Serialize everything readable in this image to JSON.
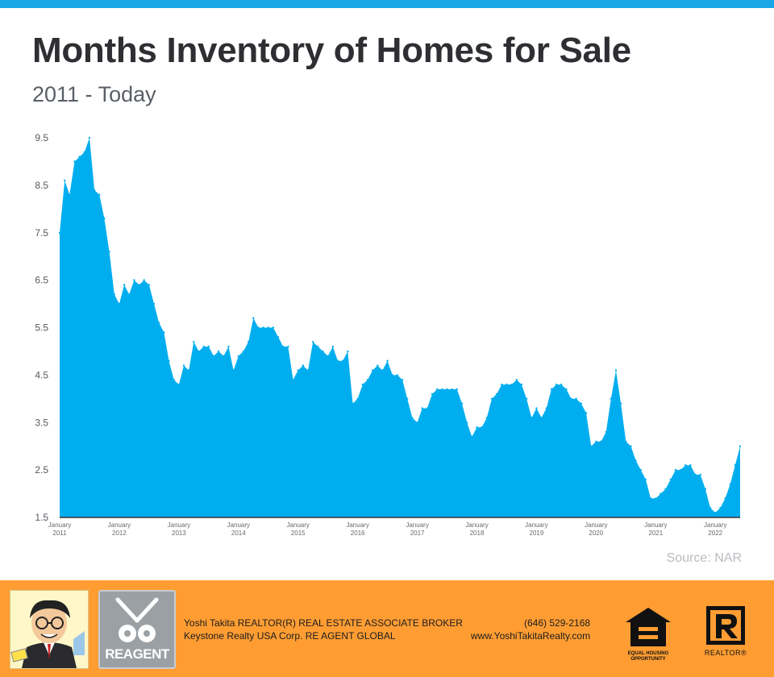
{
  "title": "Months Inventory of Homes for Sale",
  "subtitle": "2011 - Today",
  "source": "Source: NAR",
  "colors": {
    "area": "#00aeef",
    "top_bar": "#1aa7e8",
    "footer": "#ff9d33"
  },
  "footer": {
    "agent_line1": "Yoshi Takita REALTOR(R) REAL ESTATE ASSOCIATE BROKER",
    "agent_line2": "Keystone Realty USA Corp.  RE AGENT GLOBAL",
    "phone": "(646) 529-2168",
    "website": "www.YoshiTakitaRealty.com",
    "reagent_logo_text": "REAGENT",
    "eho_label": "EQUAL HOUSING OPPORTUNITY",
    "realtor_label": "REALTOR®"
  },
  "chart_data": {
    "type": "area",
    "title": "Months Inventory of Homes for Sale",
    "subtitle": "2011 - Today",
    "xlabel": "",
    "ylabel": "",
    "ylim": [
      1.5,
      9.5
    ],
    "yticks": [
      "1.5",
      "2.5",
      "3.5",
      "4.5",
      "5.5",
      "6.5",
      "7.5",
      "8.5",
      "9.5"
    ],
    "x_start": "2011-01",
    "x_frequency": "monthly",
    "xtick_labels": [
      {
        "month": "January",
        "year": "2011"
      },
      {
        "month": "January",
        "year": "2012"
      },
      {
        "month": "January",
        "year": "2013"
      },
      {
        "month": "January",
        "year": "2014"
      },
      {
        "month": "January",
        "year": "2015"
      },
      {
        "month": "January",
        "year": "2016"
      },
      {
        "month": "January",
        "year": "2017"
      },
      {
        "month": "January",
        "year": "2018"
      },
      {
        "month": "January",
        "year": "2019"
      },
      {
        "month": "January",
        "year": "2020"
      },
      {
        "month": "January",
        "year": "2021"
      },
      {
        "month": "January",
        "year": "2022"
      }
    ],
    "values": [
      7.5,
      8.6,
      8.3,
      9.0,
      9.1,
      9.2,
      9.5,
      8.4,
      8.3,
      7.8,
      7.1,
      6.2,
      6.0,
      6.4,
      6.2,
      6.5,
      6.4,
      6.5,
      6.4,
      6.0,
      5.6,
      5.4,
      4.8,
      4.4,
      4.3,
      4.7,
      4.6,
      5.2,
      5.0,
      5.1,
      5.1,
      4.9,
      5.0,
      4.9,
      5.1,
      4.6,
      4.9,
      5.0,
      5.2,
      5.7,
      5.5,
      5.5,
      5.5,
      5.5,
      5.3,
      5.1,
      5.1,
      4.4,
      4.6,
      4.7,
      4.6,
      5.2,
      5.1,
      5.0,
      4.9,
      5.1,
      4.8,
      4.8,
      5.0,
      3.9,
      4.0,
      4.3,
      4.4,
      4.6,
      4.7,
      4.6,
      4.8,
      4.5,
      4.5,
      4.4,
      4.0,
      3.6,
      3.5,
      3.8,
      3.8,
      4.1,
      4.2,
      4.2,
      4.2,
      4.2,
      4.2,
      3.9,
      3.5,
      3.2,
      3.4,
      3.4,
      3.6,
      4.0,
      4.1,
      4.3,
      4.3,
      4.3,
      4.4,
      4.3,
      4.0,
      3.6,
      3.8,
      3.6,
      3.8,
      4.2,
      4.3,
      4.3,
      4.2,
      4.0,
      4.0,
      3.9,
      3.7,
      3.0,
      3.1,
      3.1,
      3.3,
      4.0,
      4.6,
      3.9,
      3.1,
      3.0,
      2.7,
      2.5,
      2.3,
      1.9,
      1.9,
      2.0,
      2.1,
      2.3,
      2.5,
      2.5,
      2.6,
      2.6,
      2.4,
      2.4,
      2.1,
      1.7,
      1.6,
      1.7,
      1.9,
      2.2,
      2.6,
      3.0
    ]
  }
}
